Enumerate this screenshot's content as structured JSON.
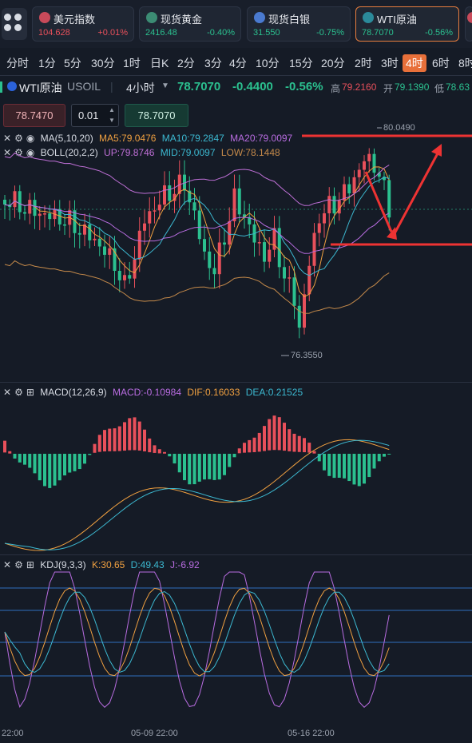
{
  "tickers": [
    {
      "name": "美元指数",
      "price": "104.628",
      "change": "+0.01%",
      "color": "#e8505b",
      "active": false,
      "icon": "us-flag-icon"
    },
    {
      "name": "现货黄金",
      "price": "2416.48",
      "change": "-0.40%",
      "color": "#2bc08f",
      "active": false,
      "icon": "gold-icon"
    },
    {
      "name": "现货白银",
      "price": "31.550",
      "change": "-0.75%",
      "color": "#2bc08f",
      "active": false,
      "icon": "silver-icon"
    },
    {
      "name": "WTI原油",
      "price": "78.7070",
      "change": "-0.56%",
      "color": "#2bc08f",
      "active": true,
      "icon": "oil-icon"
    }
  ],
  "timeframes": [
    "分时",
    "1分",
    "5分",
    "30分",
    "1时",
    "日K",
    "2分",
    "3分",
    "4分",
    "10分",
    "15分",
    "20分",
    "2时",
    "3时",
    "4时",
    "6时",
    "8时"
  ],
  "active_timeframe": "4时",
  "symbol": {
    "name": "WTI原油",
    "code": "USOIL",
    "interval": "4小时",
    "price": "78.7070",
    "change": "-0.4400",
    "change_pct": "-0.56%",
    "high_label": "高",
    "high": "79.2160",
    "open_label": "开",
    "open": "79.1390",
    "low_label": "低",
    "low": "78.63"
  },
  "order": {
    "sell_price": "78.7470",
    "quantity": "0.01",
    "buy_price": "78.7070"
  },
  "main_indicators": {
    "ma": {
      "name": "MA(5,10,20)",
      "ma5": "MA5:79.0476",
      "ma10": "MA10:79.2847",
      "ma20": "MA20:79.0097"
    },
    "boll": {
      "name": "BOLL(20,2,2)",
      "up": "UP:79.8746",
      "mid": "MID:79.0097",
      "low": "LOW:78.1448"
    }
  },
  "macd": {
    "name": "MACD(12,26,9)",
    "macd": "MACD:-0.10984",
    "dif": "DIF:0.16033",
    "dea": "DEA:0.21525"
  },
  "kdj": {
    "name": "KDJ(9,3,3)",
    "k": "K:30.65",
    "d": "D:49.43",
    "j": "J:-6.92"
  },
  "price_marks": {
    "high": "80.0490",
    "low": "76.3550"
  },
  "dates": [
    "22:00",
    "05-09 22:00",
    "05-16 22:00"
  ],
  "colors": {
    "up": "#e8505b",
    "down": "#2bc08f",
    "ma5": "#f0a040",
    "ma10": "#3cb8d0",
    "ma20": "#b86ce0",
    "boll_up": "#c070d8",
    "boll_low": "#c58a4a",
    "accent": "#e8703a",
    "annotation": "#ee3333"
  }
}
